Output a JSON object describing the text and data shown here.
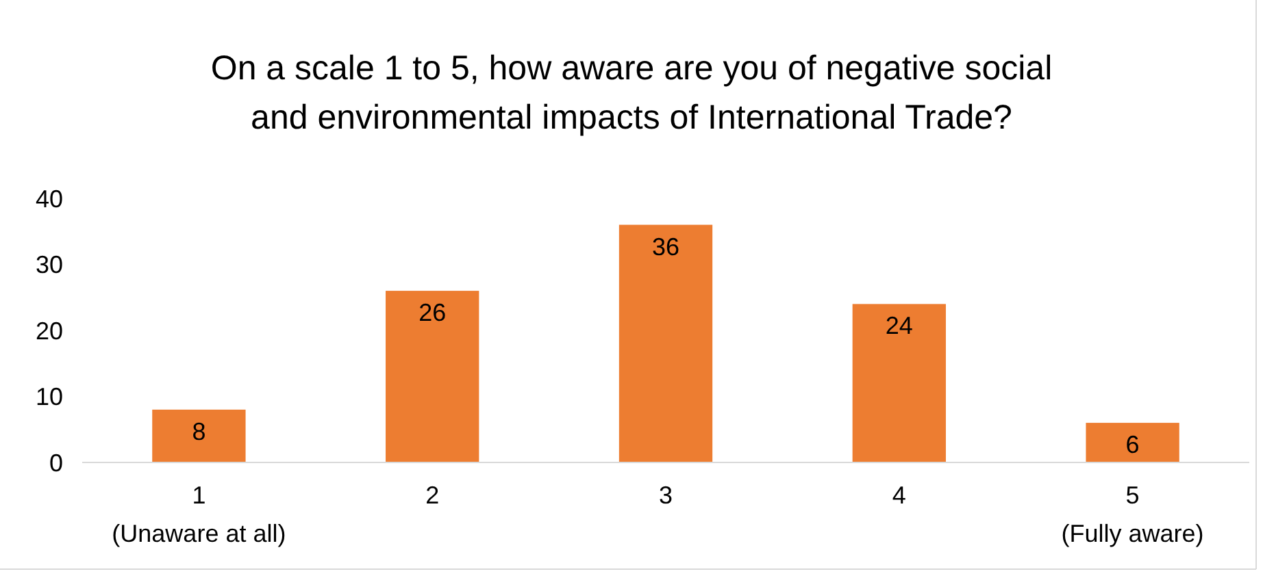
{
  "chart_data": {
    "type": "bar",
    "title": "On a scale 1 to 5, how aware are you of negative social and environmental impacts of International Trade?",
    "categories": [
      "1\n(Unaware at all)",
      "2",
      "3",
      "4",
      "5\n(Fully aware)"
    ],
    "values": [
      8,
      26,
      36,
      24,
      6
    ],
    "color": "#ed7d31",
    "ylim": [
      0,
      40
    ],
    "yticks": [
      0,
      10,
      20,
      30,
      40
    ],
    "grid": false,
    "data_labels": true
  }
}
